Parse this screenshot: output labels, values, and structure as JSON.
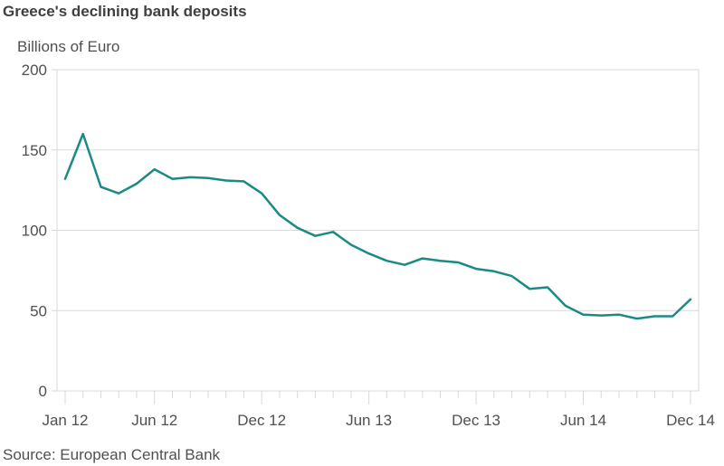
{
  "title": "Greece's declining bank deposits",
  "y_unit_label": "Billions of Euro",
  "source": "Source: European Central Bank",
  "colors": {
    "line": "#1b8a86",
    "grid": "#d9d9d9",
    "frame": "#d9d9d9",
    "text": "#505050",
    "title": "#404040"
  },
  "chart_data": {
    "type": "line",
    "title": "Greece's declining bank deposits",
    "xlabel": "",
    "ylabel": "Billions of Euro",
    "ylim": [
      0,
      200
    ],
    "yticks": [
      0,
      50,
      100,
      150,
      200
    ],
    "grid": true,
    "legend": null,
    "x_tick_labels": [
      {
        "label": "Jan 12",
        "index": 0
      },
      {
        "label": "Jun 12",
        "index": 5
      },
      {
        "label": "Dec 12",
        "index": 11
      },
      {
        "label": "Jun 13",
        "index": 17
      },
      {
        "label": "Dec 13",
        "index": 23
      },
      {
        "label": "Jun 14",
        "index": 29
      },
      {
        "label": "Dec 14",
        "index": 35
      }
    ],
    "x": [
      "Jan 12",
      "Feb 12",
      "Mar 12",
      "Apr 12",
      "May 12",
      "Jun 12",
      "Jul 12",
      "Aug 12",
      "Sep 12",
      "Oct 12",
      "Nov 12",
      "Dec 12",
      "Jan 13",
      "Feb 13",
      "Mar 13",
      "Apr 13",
      "May 13",
      "Jun 13",
      "Jul 13",
      "Aug 13",
      "Sep 13",
      "Oct 13",
      "Nov 13",
      "Dec 13",
      "Jan 14",
      "Feb 14",
      "Mar 14",
      "Apr 14",
      "May 14",
      "Jun 14",
      "Jul 14",
      "Aug 14",
      "Sep 14",
      "Oct 14",
      "Nov 14",
      "Dec 14"
    ],
    "series": [
      {
        "name": "Bank deposits",
        "values": [
          132,
          160,
          127,
          123,
          129,
          138,
          132,
          133,
          132.5,
          131,
          130.5,
          123,
          109.5,
          101.5,
          96.5,
          99,
          91,
          85.5,
          81,
          78.5,
          82.5,
          81,
          80,
          76,
          74.5,
          71.5,
          63.5,
          64.5,
          53,
          47.5,
          47,
          47.5,
          45,
          46.5,
          46.5,
          57
        ]
      }
    ]
  }
}
